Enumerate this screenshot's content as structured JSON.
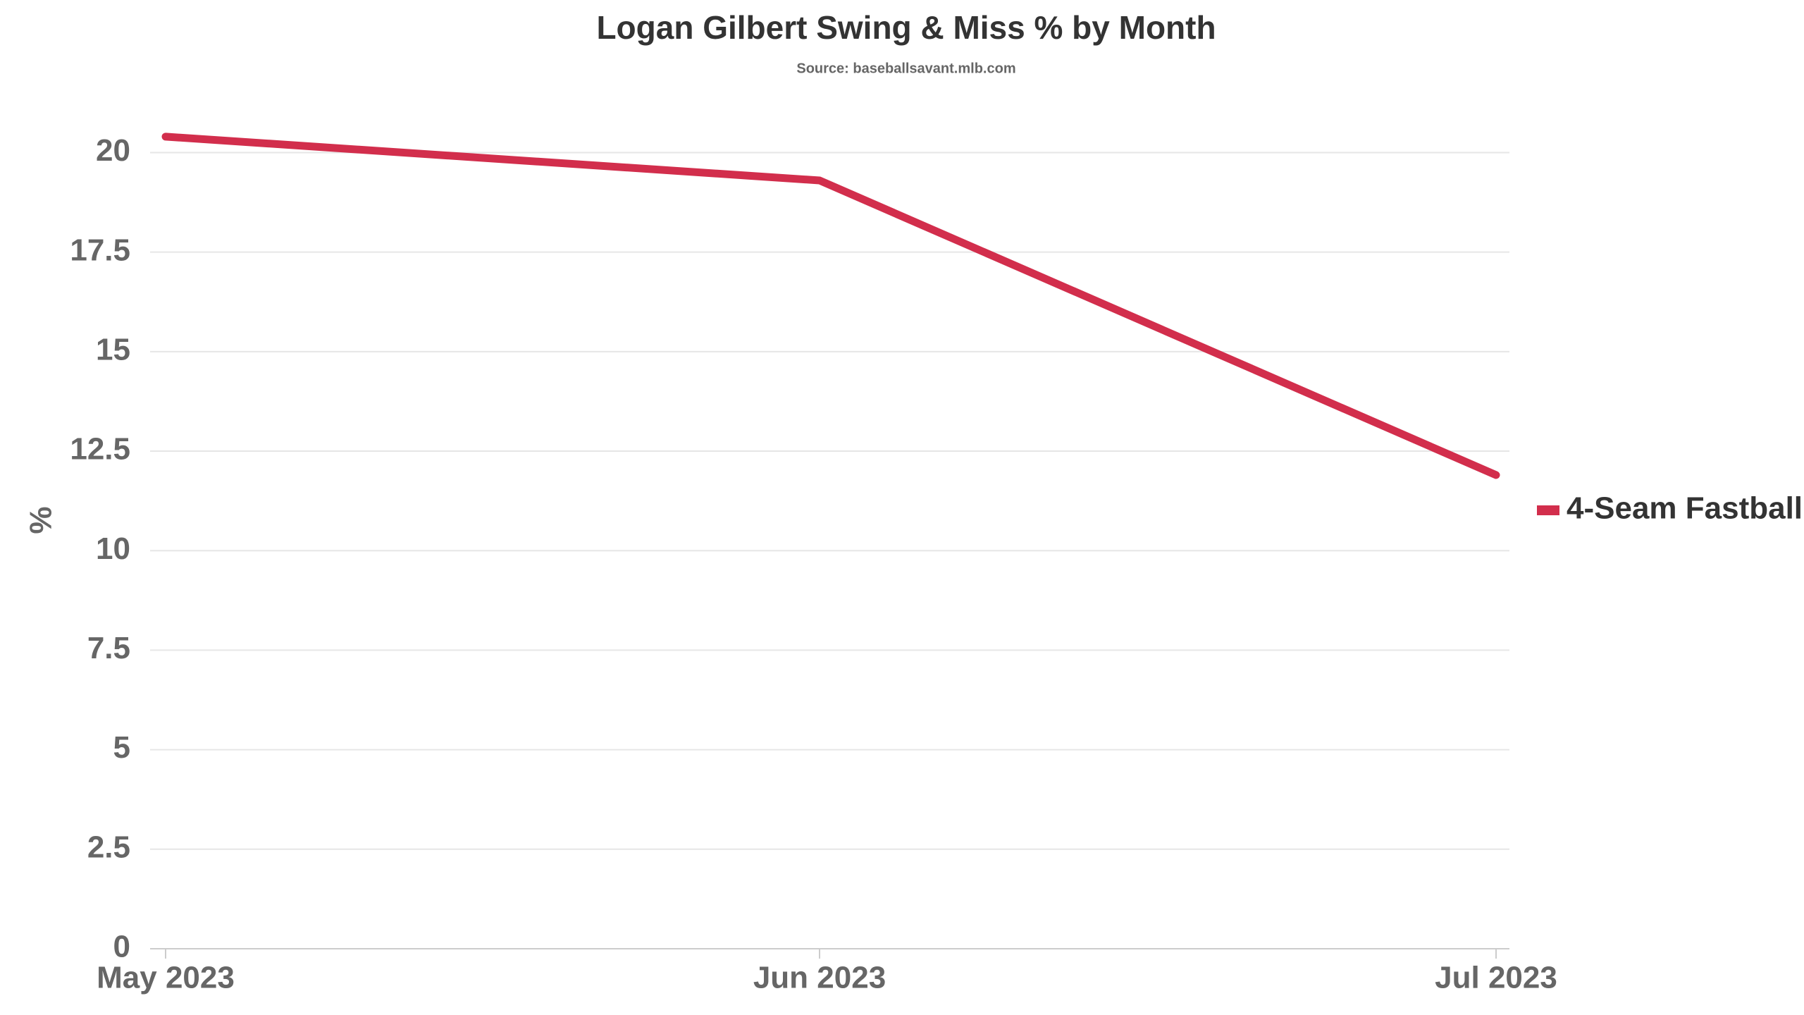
{
  "chart_data": {
    "type": "line",
    "title": "Logan Gilbert Swing & Miss % by Month",
    "subtitle": "Source: baseballsavant.mlb.com",
    "y_label": "%",
    "categories": [
      "May 2023",
      "Jun 2023",
      "Jul 2023"
    ],
    "series": [
      {
        "name": "4-Seam Fastball",
        "color": "#d22e4c",
        "values": [
          20.4,
          19.3,
          11.9
        ]
      }
    ],
    "ylim": [
      0,
      21
    ],
    "yticks": [
      0,
      2.5,
      5,
      7.5,
      10,
      12.5,
      15,
      17.5,
      20
    ],
    "grid": true,
    "legend": "right"
  }
}
